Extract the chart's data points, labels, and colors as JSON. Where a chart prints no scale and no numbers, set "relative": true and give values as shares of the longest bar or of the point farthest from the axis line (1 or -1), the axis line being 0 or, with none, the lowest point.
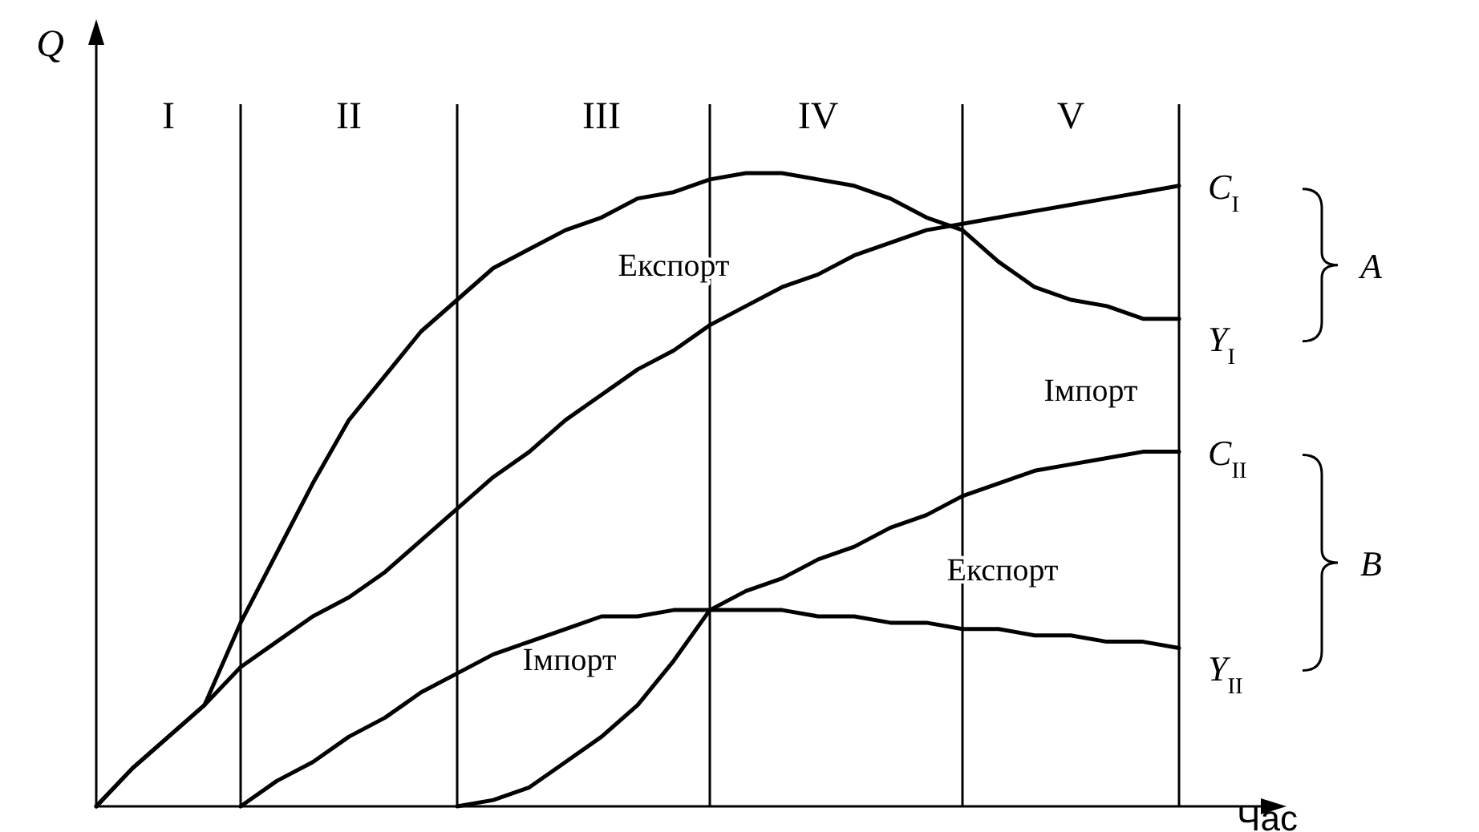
{
  "chart_data": {
    "type": "line",
    "relative": true,
    "xlabel": "Час",
    "ylabel": "Q",
    "tick_labels": "x",
    "categories": [
      null,
      null,
      "I",
      null,
      null,
      null,
      null,
      "II",
      null,
      null,
      null,
      null,
      null,
      null,
      "III",
      null,
      null,
      null,
      null,
      null,
      "IV",
      null,
      null,
      null,
      null,
      null,
      null,
      "V",
      null,
      null,
      null
    ],
    "series": [
      {
        "name": "C$_{I}$",
        "color": "#000000",
        "values": [
          0,
          0.06,
          0.11,
          0.16,
          0.22,
          0.26,
          0.3,
          0.33,
          0.37,
          0.42,
          0.47,
          0.52,
          0.56,
          0.61,
          0.65,
          0.69,
          0.72,
          0.76,
          0.79,
          0.82,
          0.84,
          0.87,
          0.89,
          0.91,
          0.92,
          0.93,
          0.94,
          0.95,
          0.96,
          0.97,
          0.98
        ]
      },
      {
        "name": "Y$_{I}$",
        "color": "#000000",
        "values": [
          0,
          0.06,
          0.11,
          0.16,
          0.29,
          0.4,
          0.51,
          0.61,
          0.68,
          0.75,
          0.8,
          0.85,
          0.88,
          0.91,
          0.93,
          0.96,
          0.97,
          0.99,
          1.0,
          1.0,
          0.99,
          0.98,
          0.96,
          0.93,
          0.91,
          0.86,
          0.82,
          0.8,
          0.79,
          0.77,
          0.77
        ]
      },
      {
        "name": "C$_{II}$",
        "color": "#000000",
        "values": [
          null,
          null,
          null,
          null,
          null,
          null,
          null,
          null,
          null,
          null,
          0,
          0.01,
          0.03,
          0.07,
          0.11,
          0.16,
          0.23,
          0.31,
          0.34,
          0.36,
          0.39,
          0.41,
          0.44,
          0.46,
          0.49,
          0.51,
          0.53,
          0.54,
          0.55,
          0.56,
          0.56
        ]
      },
      {
        "name": "Y$_{II}$",
        "color": "#000000",
        "values": [
          null,
          null,
          null,
          null,
          0,
          0.04,
          0.07,
          0.11,
          0.14,
          0.18,
          0.21,
          0.24,
          0.26,
          0.28,
          0.3,
          0.3,
          0.31,
          0.31,
          0.31,
          0.31,
          0.3,
          0.3,
          0.29,
          0.29,
          0.28,
          0.28,
          0.27,
          0.27,
          0.26,
          0.26,
          0.25
        ]
      }
    ],
    "grid": "x",
    "annotations": [
      "Експорт",
      "Імпорт",
      "Імпорт",
      "Експорт",
      "A",
      "B"
    ]
  }
}
